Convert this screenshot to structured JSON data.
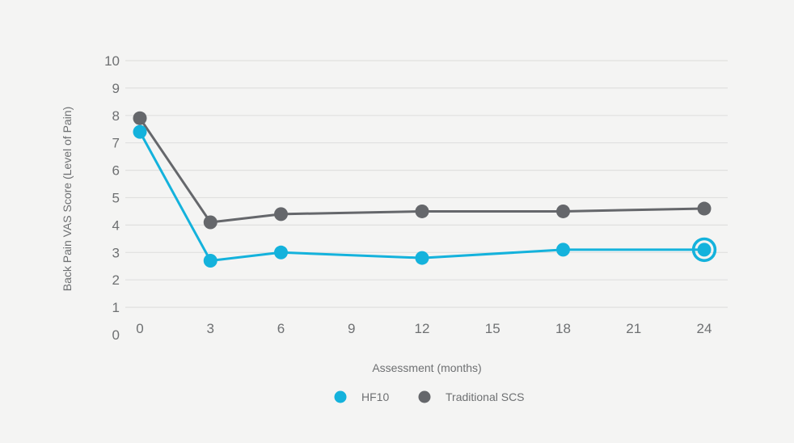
{
  "chart_data": {
    "type": "line",
    "title": "",
    "xlabel": "Assessment (months)",
    "ylabel": "Back Pain VAS Score (Level of Pain)",
    "x": [
      0,
      3,
      6,
      12,
      18,
      24
    ],
    "x_tick_labels": [
      "0",
      "3",
      "6",
      "9",
      "12",
      "15",
      "18",
      "21",
      "24"
    ],
    "x_tick_values": [
      0,
      3,
      6,
      9,
      12,
      15,
      18,
      21,
      24
    ],
    "y_tick_labels": [
      "10",
      "9",
      "8",
      "7",
      "6",
      "5",
      "4",
      "3",
      "2",
      "1",
      "0"
    ],
    "y_tick_values": [
      10,
      9,
      8,
      7,
      6,
      5,
      4,
      3,
      2,
      1,
      0
    ],
    "ylim": [
      0,
      10
    ],
    "xlim": [
      0,
      24
    ],
    "grid": "horizontal",
    "legend_position": "bottom-center",
    "series": [
      {
        "name": "Traditional SCS",
        "color": "#65676b",
        "values": [
          7.9,
          4.1,
          4.4,
          4.5,
          4.5,
          4.6
        ]
      },
      {
        "name": "HF10",
        "color": "#14b2dc",
        "values": [
          7.4,
          2.7,
          3.0,
          2.8,
          3.1,
          3.1
        ]
      }
    ],
    "highlight": {
      "series": "HF10",
      "month": 24,
      "value": 3.1,
      "style": "ring"
    }
  },
  "legend": {
    "items": [
      {
        "label": "HF10",
        "color": "#14b2dc"
      },
      {
        "label": "Traditional SCS",
        "color": "#65676b"
      }
    ]
  },
  "colors": {
    "background": "#f4f4f3",
    "gridline": "#e0e0df",
    "text": "#6e7072",
    "hf10": "#14b2dc",
    "traditional_scs": "#65676b"
  }
}
